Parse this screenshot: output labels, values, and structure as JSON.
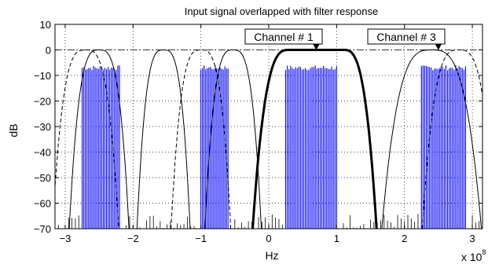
{
  "chart_data": {
    "type": "line",
    "title": "Input signal overlapped with filter response",
    "xlabel": "Hz",
    "ylabel": "dB",
    "x_multiplier": "x 10",
    "x_multiplier_exp": "8",
    "xlim": [
      -3.15,
      3.15
    ],
    "ylim": [
      -70,
      10
    ],
    "x_ticks": [
      -3,
      -2,
      -1,
      0,
      1,
      2,
      3
    ],
    "y_ticks": [
      10,
      0,
      -10,
      -20,
      -30,
      -40,
      -50,
      -60,
      -70
    ],
    "grid": true,
    "colors": {
      "signal": "#0000ff",
      "filter": "#000000"
    },
    "series": [
      {
        "style": "solid-thick",
        "passband": [
          0.3,
          1.1
        ],
        "stopband_edges": [
          -0.25,
          1.6
        ],
        "peak_db": 0
      },
      {
        "style": "solid-thin",
        "passbands": [
          [
            -2.6,
            -2.4
          ],
          [
            -1.6,
            -1.5
          ],
          [
            -0.6,
            -0.45
          ],
          [
            2.0,
            2.8
          ]
        ],
        "peak_db": 0
      },
      {
        "style": "dashed",
        "passbands": [
          [
            -2.95,
            -2.45
          ],
          [
            -1.2,
            -0.8
          ],
          [
            2.5,
            3.1
          ]
        ],
        "peak_db": 0
      },
      {
        "style": "blue-spectrum",
        "bands": [
          [
            -2.75,
            -2.2
          ],
          [
            -1.0,
            -0.6
          ],
          [
            0.25,
            1.0
          ],
          [
            2.25,
            2.9
          ]
        ],
        "level_db": -7
      }
    ],
    "annotations": [
      {
        "text": "Channel # 1",
        "arrow_to": [
          0.7,
          0
        ]
      },
      {
        "text": "Channel # 3",
        "arrow_to": [
          2.5,
          0
        ]
      }
    ]
  }
}
